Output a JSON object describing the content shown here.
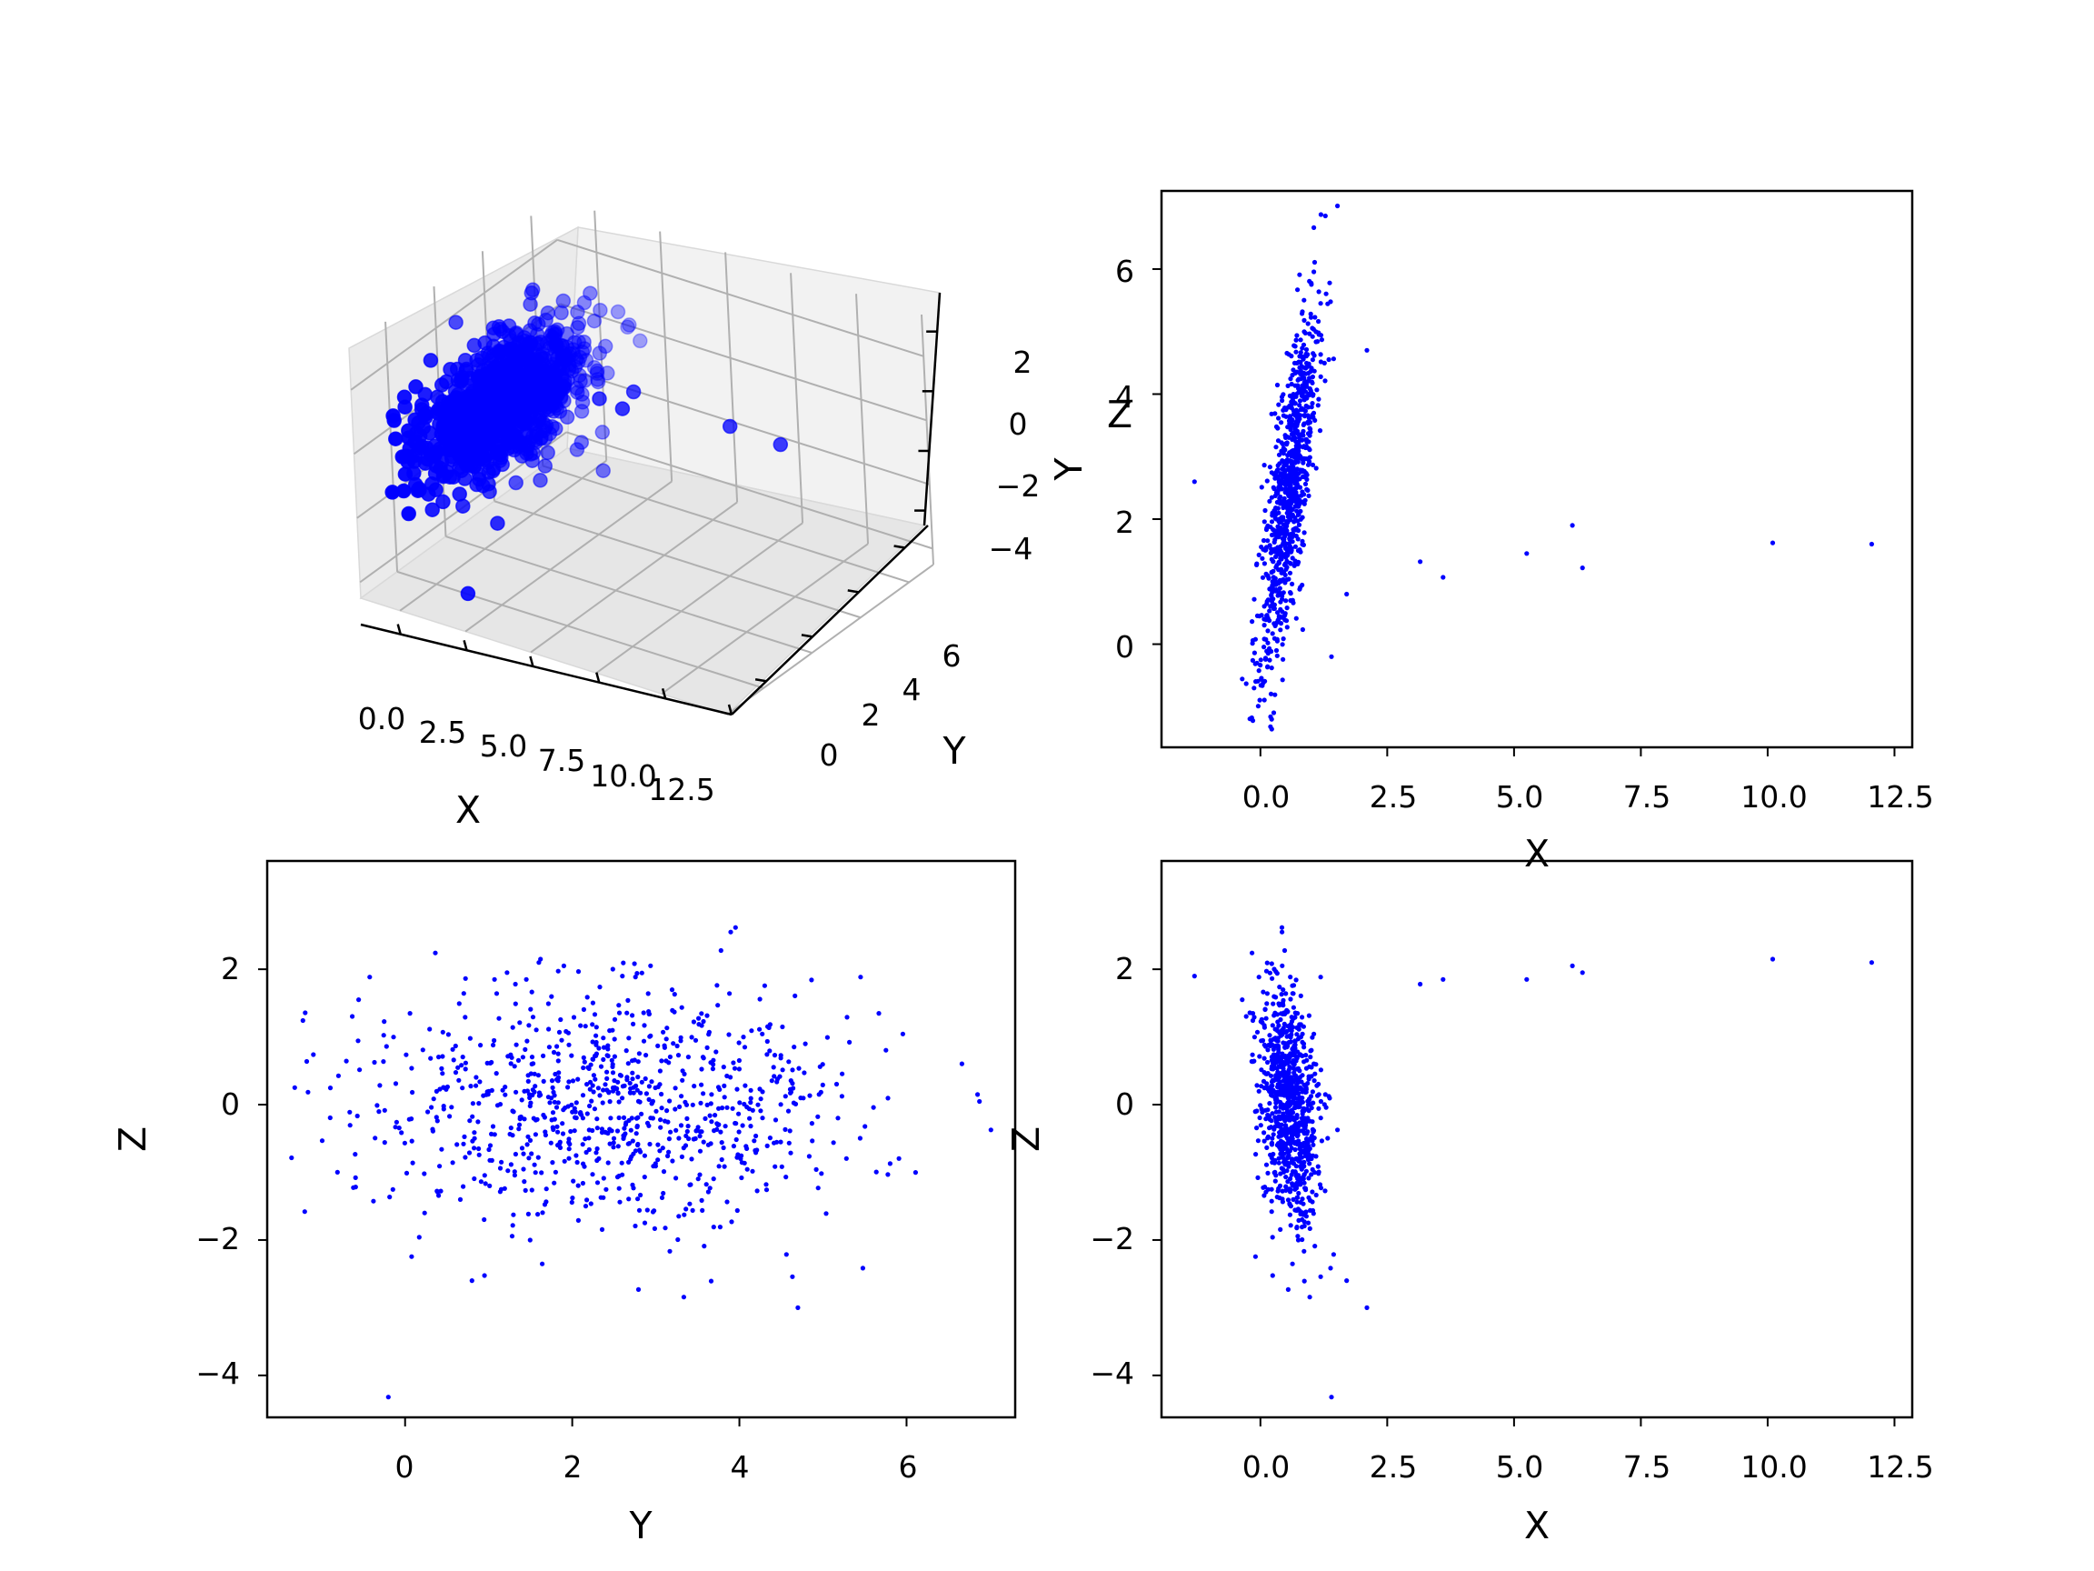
{
  "colors": {
    "points": "#0000ff",
    "axes": "#000000",
    "grid": "#b0b0b0",
    "pane": "#f2f2f2"
  },
  "chart_data": [
    {
      "type": "scatter",
      "projection": "3d",
      "marker": "filled circles (large, depth-shaded)",
      "xlabel": "X",
      "ylabel": "Y",
      "zlabel": "Z",
      "xticks": [
        "0.0",
        "2.5",
        "5.0",
        "7.5",
        "10.0",
        "12.5"
      ],
      "yticks": [
        "0",
        "2",
        "4",
        "6"
      ],
      "zticks": [
        "2",
        "0",
        "−2",
        "−4"
      ],
      "xlim": [
        -1.5,
        12.5
      ],
      "ylim": [
        -1.5,
        7
      ],
      "zlim": [
        -4.5,
        3.3
      ],
      "grid": true
    },
    {
      "type": "scatter",
      "xlabel": "X",
      "ylabel": "Y",
      "xticks": [
        "0.0",
        "2.5",
        "5.0",
        "7.5",
        "10.0",
        "12.5"
      ],
      "yticks": [
        "6",
        "4",
        "2",
        "0"
      ],
      "xlim": [
        -1.95,
        12.85
      ],
      "ylim": [
        -1.65,
        7.25
      ],
      "grid": false
    },
    {
      "type": "scatter",
      "xlabel": "Y",
      "ylabel": "Z",
      "xticks": [
        "0",
        "2",
        "4",
        "6"
      ],
      "yticks": [
        "2",
        "0",
        "−2",
        "−4"
      ],
      "xlim": [
        -1.65,
        7.3
      ],
      "ylim": [
        -4.62,
        3.6
      ],
      "grid": false
    },
    {
      "type": "scatter",
      "xlabel": "X",
      "ylabel": "Z",
      "xticks": [
        "0.0",
        "2.5",
        "5.0",
        "7.5",
        "10.0",
        "12.5"
      ],
      "yticks": [
        "2",
        "0",
        "−2",
        "−4"
      ],
      "xlim": [
        -1.95,
        12.85
      ],
      "ylim": [
        -4.62,
        3.6
      ],
      "grid": false
    }
  ],
  "points": {
    "count": 900,
    "cluster": {
      "distribution": "normal",
      "y_mean": 2.5,
      "y_sd": 1.5,
      "z_sd": 1.2,
      "x_from_y": [
        0.15,
        0.2
      ],
      "x_noise_sd": 0.2,
      "z_on_x_slope": -2.5
    },
    "outliers_xyz": [
      [
        12.05,
        1.6,
        2.1
      ],
      [
        10.1,
        1.62,
        2.15
      ],
      [
        6.35,
        1.22,
        1.95
      ],
      [
        6.15,
        1.9,
        2.05
      ],
      [
        5.25,
        1.45,
        1.85
      ],
      [
        3.6,
        1.07,
        1.85
      ],
      [
        3.15,
        1.32,
        1.78
      ],
      [
        -1.3,
        2.6,
        1.9
      ],
      [
        1.28,
        6.85,
        0.15
      ],
      [
        1.4,
        -0.2,
        -4.32
      ],
      [
        2.1,
        4.7,
        -3.0
      ],
      [
        1.7,
        0.8,
        -2.6
      ]
    ]
  }
}
